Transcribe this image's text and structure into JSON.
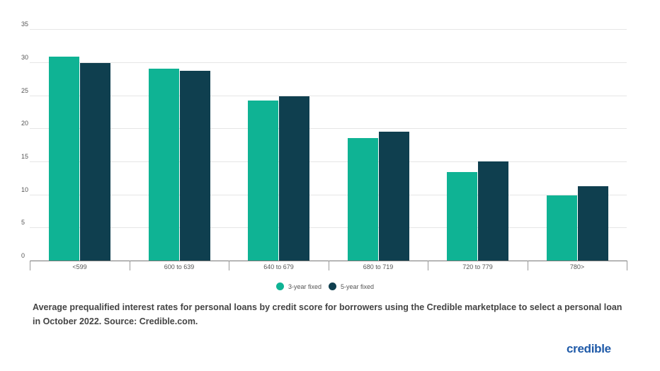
{
  "chart_data": {
    "type": "bar",
    "title": "",
    "xlabel": "",
    "ylabel": "",
    "ylim": [
      0,
      35
    ],
    "yticks": [
      0,
      5,
      10,
      15,
      20,
      25,
      30,
      35
    ],
    "grid": true,
    "legend_position": "bottom",
    "categories": [
      "<599",
      "600 to 639",
      "640 to 679",
      "680 to 719",
      "720 to 779",
      "780>"
    ],
    "series": [
      {
        "name": "3-year fixed",
        "color": "#0fb394",
        "values": [
          30.9,
          29.0,
          24.2,
          18.5,
          13.4,
          9.9
        ]
      },
      {
        "name": "5-year fixed",
        "color": "#0f3f4f",
        "values": [
          29.9,
          28.7,
          24.9,
          19.5,
          15.0,
          11.3
        ]
      }
    ]
  },
  "caption": "Average prequalified interest rates for personal loans by credit score for borrowers using the Credible marketplace to select a personal loan in October 2022. Source: Credible.com.",
  "logo": "credible",
  "colors": {
    "teal": "#0fb394",
    "dark": "#0f3f4f",
    "brand": "#1f5aa8"
  }
}
